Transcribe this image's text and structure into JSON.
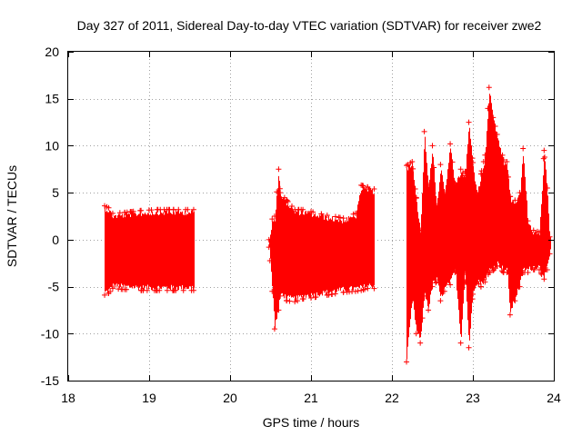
{
  "chart_data": {
    "type": "scatter",
    "title": "Day 327 of 2011, Sidereal Day-to-day VTEC variation (SDTVAR) for receiver zwe2",
    "xlabel": "GPS time / hours",
    "ylabel": "SDTVAR / TECUs",
    "xlim": [
      18,
      24
    ],
    "ylim": [
      -15,
      20
    ],
    "xticks": [
      18,
      19,
      20,
      21,
      22,
      23,
      24
    ],
    "yticks": [
      -15,
      -10,
      -5,
      0,
      5,
      10,
      15,
      20
    ],
    "xtick_labels": [
      "18",
      "19",
      "20",
      "21",
      "22",
      "23",
      "24"
    ],
    "ytick_labels": [
      "-15",
      "-10",
      "-5",
      "0",
      "5",
      "10",
      "15",
      "20"
    ],
    "grid": true,
    "color": "#ff0000",
    "marker": "plus",
    "series": [
      {
        "name": "SDTVAR",
        "segments": [
          {
            "x_start": 18.45,
            "x_end": 19.55,
            "envelope": [
              [
                18.45,
                -5.9,
                3.6
              ],
              [
                18.5,
                -5.7,
                3.4
              ],
              [
                18.55,
                -5.2,
                2.8
              ],
              [
                18.7,
                -5.3,
                2.9
              ],
              [
                18.9,
                -5.4,
                3.1
              ],
              [
                19.1,
                -5.4,
                3.2
              ],
              [
                19.3,
                -5.4,
                3.2
              ],
              [
                19.55,
                -5.4,
                3.2
              ]
            ]
          },
          {
            "x_start": 20.48,
            "x_end": 21.78,
            "envelope": [
              [
                20.48,
                -0.8,
                0.0
              ],
              [
                20.52,
                -5.5,
                2.2
              ],
              [
                20.55,
                -9.5,
                2.5
              ],
              [
                20.6,
                -7.5,
                7.5
              ],
              [
                20.62,
                -6.0,
                5.0
              ],
              [
                20.7,
                -6.5,
                4.2
              ],
              [
                20.8,
                -6.6,
                3.2
              ],
              [
                20.9,
                -6.3,
                3.2
              ],
              [
                21.0,
                -6.2,
                3.0
              ],
              [
                21.2,
                -5.9,
                2.6
              ],
              [
                21.4,
                -5.6,
                2.3
              ],
              [
                21.55,
                -5.5,
                2.8
              ],
              [
                21.62,
                -5.4,
                5.8
              ],
              [
                21.7,
                -5.2,
                5.6
              ],
              [
                21.78,
                -5.2,
                5.4
              ]
            ]
          },
          {
            "x_start": 22.18,
            "x_end": 23.95,
            "envelope": [
              [
                22.18,
                -13.0,
                7.9
              ],
              [
                22.25,
                -6.5,
                8.3
              ],
              [
                22.3,
                -10.0,
                4.5
              ],
              [
                22.35,
                -11.0,
                1.0
              ],
              [
                22.4,
                -6.0,
                11.5
              ],
              [
                22.45,
                -7.5,
                5.8
              ],
              [
                22.5,
                -5.0,
                10.0
              ],
              [
                22.55,
                -4.5,
                3.5
              ],
              [
                22.6,
                -6.5,
                8.0
              ],
              [
                22.65,
                -5.5,
                5.0
              ],
              [
                22.72,
                -4.8,
                10.2
              ],
              [
                22.78,
                -3.5,
                6.0
              ],
              [
                22.85,
                -11.0,
                7.5
              ],
              [
                22.9,
                -3.5,
                6.8
              ],
              [
                22.95,
                -11.5,
                12.5
              ],
              [
                23.0,
                -5.8,
                8.2
              ],
              [
                23.05,
                -4.5,
                5.0
              ],
              [
                23.1,
                -5.0,
                7.0
              ],
              [
                23.15,
                -4.5,
                9.0
              ],
              [
                23.2,
                -3.5,
                16.2
              ],
              [
                23.25,
                -3.3,
                13.0
              ],
              [
                23.3,
                -2.8,
                11.2
              ],
              [
                23.38,
                -3.5,
                8.5
              ],
              [
                23.42,
                -3.5,
                8.3
              ],
              [
                23.46,
                -8.0,
                4.6
              ],
              [
                23.52,
                -6.5,
                4.2
              ],
              [
                23.58,
                -5.0,
                5.0
              ],
              [
                23.62,
                -3.5,
                9.7
              ],
              [
                23.68,
                -3.5,
                2.0
              ],
              [
                23.75,
                -3.2,
                1.0
              ],
              [
                23.82,
                -3.2,
                0.8
              ],
              [
                23.88,
                -4.2,
                9.5
              ],
              [
                23.92,
                -3.2,
                5.5
              ],
              [
                23.95,
                -1.5,
                0.3
              ]
            ]
          }
        ]
      }
    ]
  }
}
